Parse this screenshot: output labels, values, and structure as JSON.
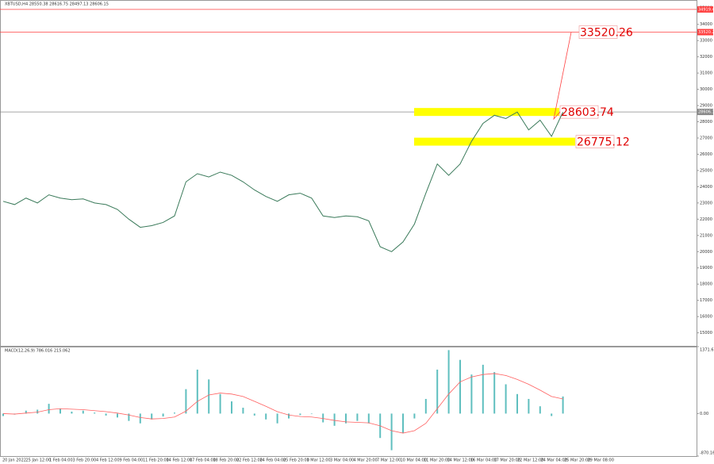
{
  "chart_data": [
    {
      "type": "line",
      "title": "XBTUSD,H4 28550.38 28616.75 28497.13 28606.15",
      "ylim": [
        14200,
        35500
      ],
      "yticks": [
        15000,
        16000,
        17000,
        18000,
        19000,
        20000,
        21000,
        22000,
        23000,
        24000,
        25000,
        26000,
        27000,
        28000,
        29000,
        30000,
        31000,
        32000,
        33000,
        34000,
        35000
      ],
      "xticks": [
        "20 Jan 2022",
        "25 Jan 12:00",
        "1 Feb 04:00",
        "3 Feb 20:00",
        "4 Feb 12:00",
        "9 Feb 04:00",
        "11 Feb 20:00",
        "14 Feb 12:00",
        "17 Feb 04:00",
        "18 Feb 20:00",
        "22 Feb 12:00",
        "24 Feb 04:00",
        "25 Feb 20:00",
        "1 Mar 12:00",
        "3 Mar 04:00",
        "4 Mar 20:00",
        "7 Mar 12:00",
        "10 Mar 04:00",
        "11 Mar 20:00",
        "14 Mar 12:00",
        "16 Mar 04:00",
        "17 Mar 20:00",
        "22 Mar 12:00",
        "24 Mar 04:00",
        "25 Mar 20:00",
        "29 Mar 08:00"
      ],
      "series": [
        {
          "name": "XBTUSD",
          "color": "#3a7a5a",
          "values": [
            23100,
            22900,
            23300,
            23000,
            23500,
            23300,
            23200,
            23250,
            23000,
            22900,
            22600,
            22000,
            21500,
            21600,
            21800,
            22200,
            24300,
            24800,
            24600,
            24900,
            24700,
            24300,
            23800,
            23400,
            23100,
            23500,
            23600,
            23300,
            22200,
            22100,
            22200,
            22150,
            21900,
            20300,
            20000,
            20600,
            21700,
            23600,
            25400,
            24700,
            25400,
            26800,
            27900,
            28400,
            28200,
            28600,
            27500,
            28100,
            27100,
            28600
          ]
        }
      ],
      "price_levels": [
        {
          "value": 34919.4,
          "label": "34919.40",
          "color": "#ff4040"
        },
        {
          "value": 33520.26,
          "label": "33520.26",
          "color": "#ff4040"
        },
        {
          "value": 28606.15,
          "label": "28606.15",
          "color": "#888888"
        }
      ],
      "annotations": [
        {
          "value": 33520.26,
          "label": "33520.26"
        },
        {
          "value": 28603.74,
          "label": "28603.74",
          "color": "#ffff00"
        },
        {
          "value": 26775.12,
          "label": "26775.12",
          "color": "#ffff00"
        }
      ]
    },
    {
      "type": "bar",
      "title": "MACD(12,26,9) 786.016 215.062",
      "ylim": [
        -870.166,
        1371.617
      ],
      "yticks": [
        {
          "value": 1371.617,
          "label": "1371.617"
        },
        {
          "value": 0,
          "label": "0.00"
        },
        {
          "value": -870.166,
          "label": "-870.166"
        }
      ],
      "series": [
        {
          "name": "MACD",
          "color": "#5fbfbf",
          "values": [
            -50,
            -20,
            60,
            80,
            200,
            100,
            40,
            60,
            20,
            -40,
            -80,
            -150,
            -200,
            -120,
            -60,
            20,
            500,
            900,
            700,
            400,
            250,
            120,
            -40,
            -120,
            -200,
            -100,
            -30,
            -10,
            -180,
            -250,
            -200,
            -150,
            -200,
            -500,
            -750,
            -400,
            -100,
            300,
            900,
            1300,
            1100,
            800,
            1000,
            850,
            600,
            400,
            300,
            150,
            -50,
            350
          ]
        },
        {
          "name": "Signal",
          "color": "#ff6060",
          "values": [
            0,
            -10,
            10,
            30,
            80,
            100,
            90,
            80,
            60,
            40,
            10,
            -30,
            -80,
            -110,
            -100,
            -70,
            50,
            250,
            380,
            420,
            400,
            350,
            250,
            150,
            40,
            -30,
            -60,
            -70,
            -100,
            -140,
            -170,
            -180,
            -190,
            -250,
            -350,
            -400,
            -350,
            -200,
            100,
            400,
            650,
            750,
            800,
            820,
            780,
            700,
            600,
            480,
            350,
            300
          ]
        }
      ]
    }
  ]
}
